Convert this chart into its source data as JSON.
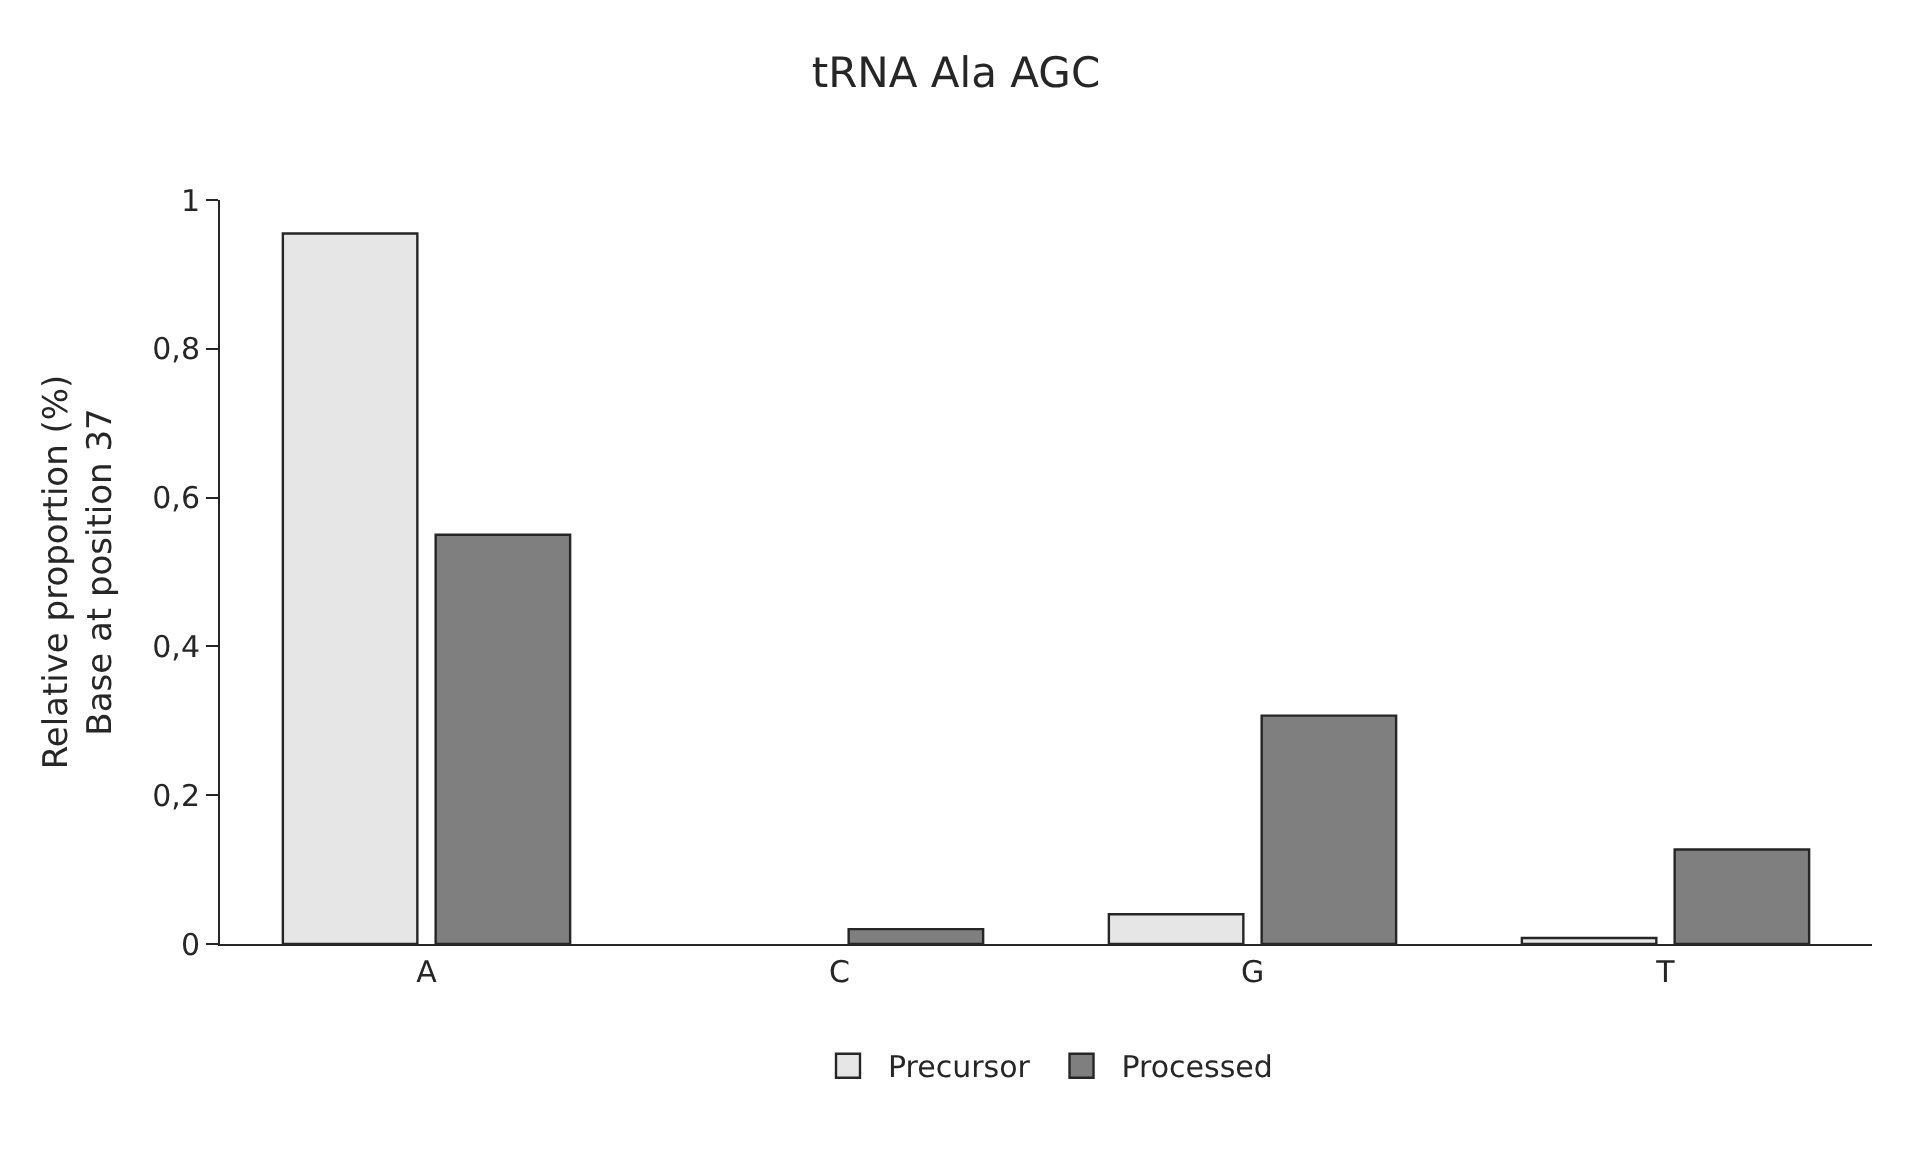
{
  "chart_data": {
    "type": "bar",
    "title": "tRNA Ala AGC",
    "ylabel": "Relative proportion (%)\nBase at position 37",
    "categories": [
      "A",
      "C",
      "G",
      "T"
    ],
    "series": [
      {
        "name": "Precursor",
        "color": "#e6e6e6",
        "values": [
          0.955,
          0,
          0.04,
          0.008
        ]
      },
      {
        "name": "Processed",
        "color": "#7f7f7f",
        "values": [
          0.55,
          0.02,
          0.307,
          0.127
        ]
      }
    ],
    "ylim": [
      0,
      1
    ],
    "yticks": [
      0,
      {
        "value": 0.2,
        "label": "0,2"
      },
      {
        "value": 0.4,
        "label": "0,4"
      },
      {
        "value": 0.6,
        "label": "0,6"
      },
      {
        "value": 0.8,
        "label": "0,8"
      },
      1
    ],
    "legend": "bottom"
  }
}
